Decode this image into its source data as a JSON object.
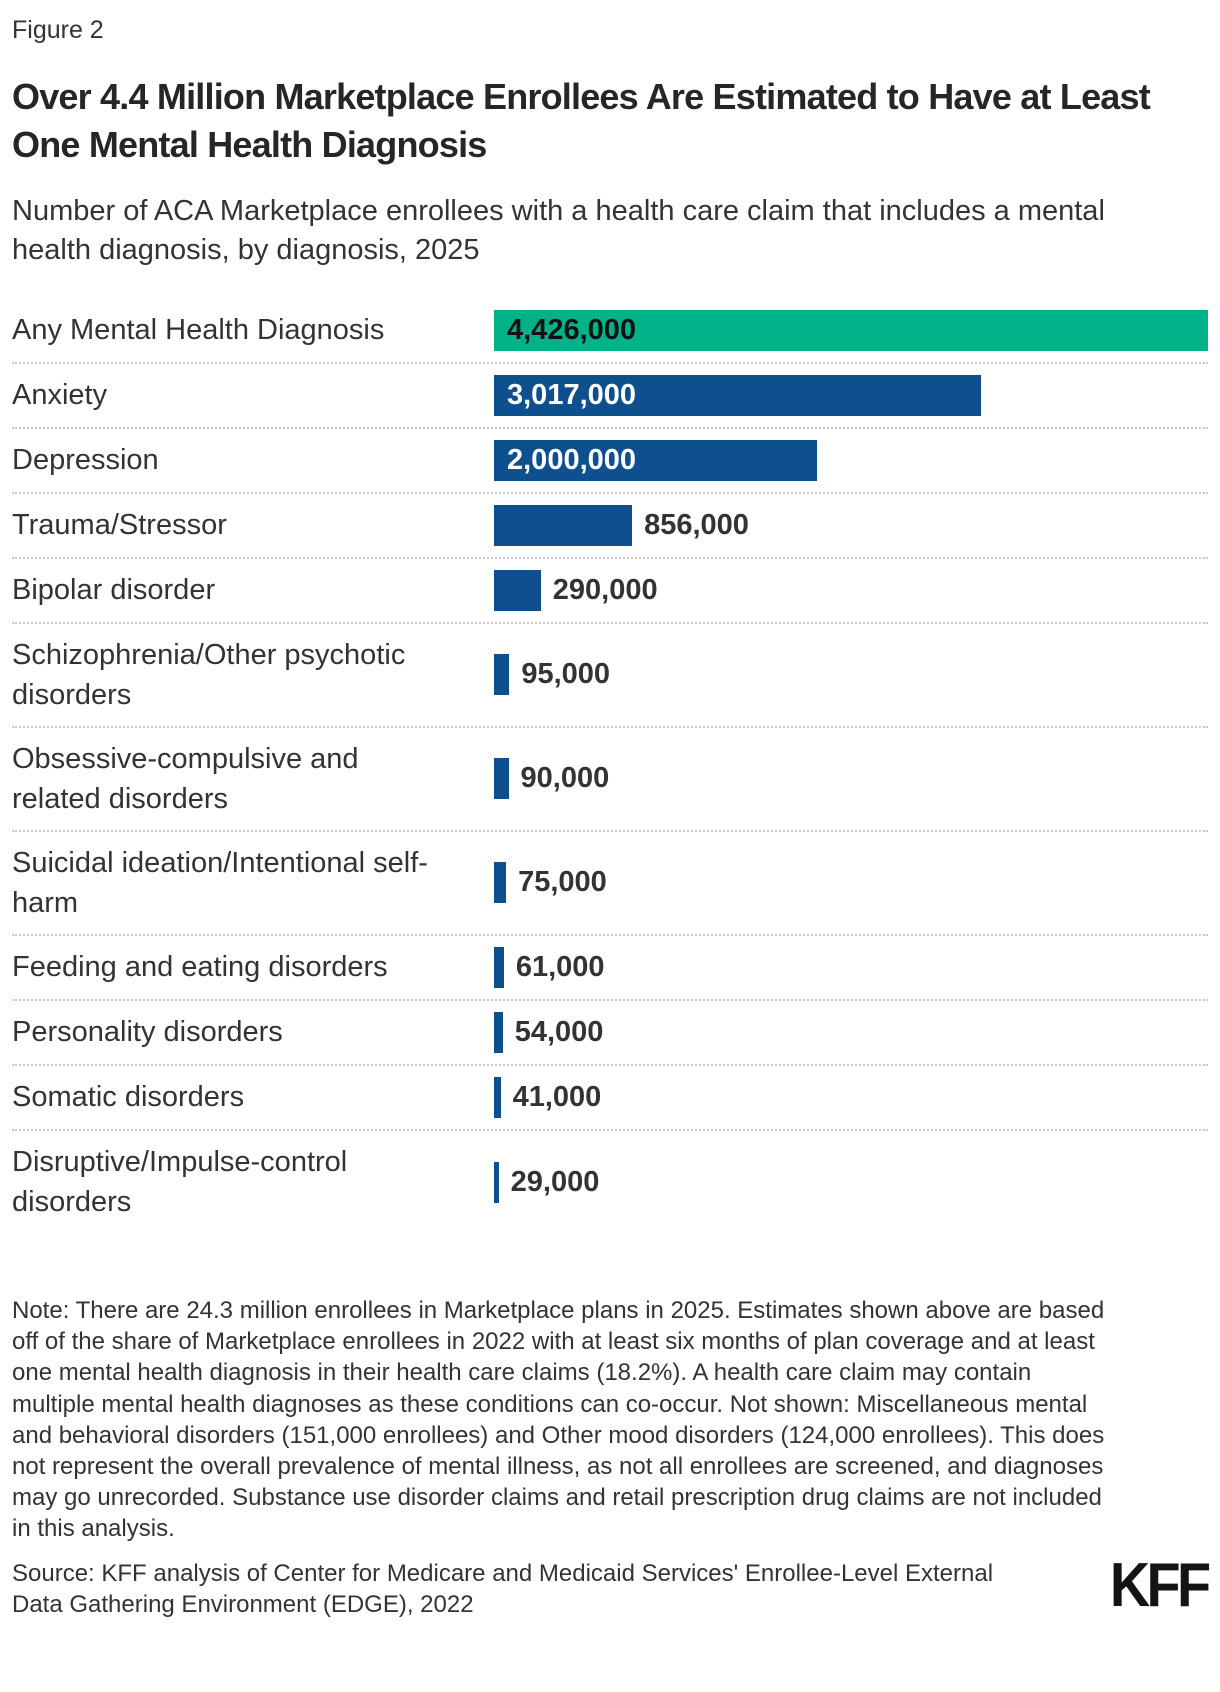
{
  "figure_label": "Figure 2",
  "title": "Over 4.4 Million Marketplace Enrollees Are Estimated to Have at Least One Mental Health Diagnosis",
  "subtitle": "Number of ACA Marketplace enrollees with a health care claim that includes a mental health diagnosis, by diagnosis, 2025",
  "colors": {
    "green": "#00B287",
    "blue": "#0E4F8E",
    "separator": "#C9C9C9",
    "body_text": "#333333",
    "title_text": "#262626"
  },
  "chart_data": {
    "type": "bar",
    "orientation": "horizontal",
    "title": "Over 4.4 Million Marketplace Enrollees Are Estimated to Have at Least One Mental Health Diagnosis",
    "subtitle": "Number of ACA Marketplace enrollees with a health care claim that includes a mental health diagnosis, by diagnosis, 2025",
    "xlabel": "",
    "ylabel": "",
    "xlim": [
      0,
      4426000
    ],
    "grid": false,
    "legend": "none",
    "categories": [
      "Any Mental Health Diagnosis",
      "Anxiety",
      "Depression",
      "Trauma/Stressor",
      "Bipolar disorder",
      "Schizophrenia/Other psychotic disorders",
      "Obsessive-compulsive and related disorders",
      "Suicidal ideation/Intentional self-harm",
      "Feeding and eating disorders",
      "Personality disorders",
      "Somatic disorders",
      "Disruptive/Impulse-control disorders"
    ],
    "values": [
      4426000,
      3017000,
      2000000,
      856000,
      290000,
      95000,
      90000,
      75000,
      61000,
      54000,
      41000,
      29000
    ],
    "value_labels": [
      "4,426,000",
      "3,017,000",
      "2,000,000",
      "856,000",
      "290,000",
      "95,000",
      "90,000",
      "75,000",
      "61,000",
      "54,000",
      "41,000",
      "29,000"
    ],
    "bar_colors": [
      "#00B287",
      "#0E4F8E",
      "#0E4F8E",
      "#0E4F8E",
      "#0E4F8E",
      "#0E4F8E",
      "#0E4F8E",
      "#0E4F8E",
      "#0E4F8E",
      "#0E4F8E",
      "#0E4F8E",
      "#0E4F8E"
    ],
    "value_label_placement": [
      "inside",
      "inside",
      "inside",
      "outside",
      "outside",
      "outside",
      "outside",
      "outside",
      "outside",
      "outside",
      "outside",
      "outside"
    ],
    "value_label_colors": [
      "#111111",
      "#FFFFFF",
      "#FFFFFF",
      "#333333",
      "#333333",
      "#333333",
      "#333333",
      "#333333",
      "#333333",
      "#333333",
      "#333333",
      "#333333"
    ]
  },
  "note": "Note: There are 24.3 million enrollees in Marketplace plans in 2025. Estimates shown above are based off of the share of Marketplace enrollees in 2022 with at least six months of plan coverage and at least one mental health diagnosis in their health care claims (18.2%). A health care claim may contain multiple mental health diagnoses as these conditions can co-occur. Not shown: Miscellaneous mental and behavioral disorders (151,000 enrollees) and Other mood disorders (124,000 enrollees). This does not represent the overall prevalence of mental illness, as not all enrollees are screened, and diagnoses may go unrecorded. Substance use disorder claims and retail prescription drug claims are not included in this analysis.",
  "source": "Source: KFF analysis of Center for Medicare and Medicaid Services' Enrollee-Level External Data Gathering Environment (EDGE), 2022",
  "logo": "KFF"
}
